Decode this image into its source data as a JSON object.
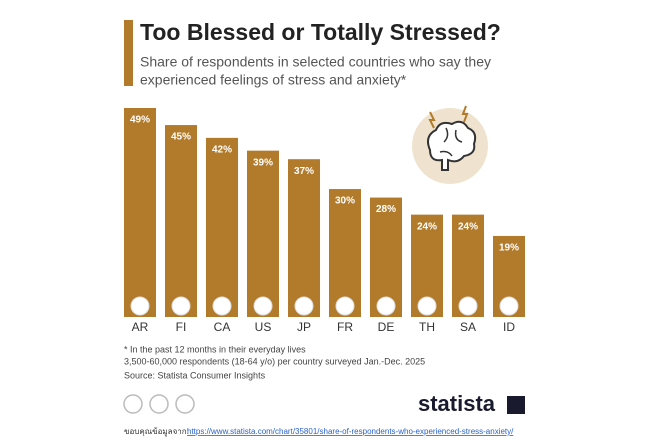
{
  "chart_data": {
    "type": "bar",
    "title": "Too Blessed or Totally Stressed?",
    "subtitle": [
      "Share of respondents in selected countries who say they",
      "experienced feelings of stress and anxiety*"
    ],
    "categories": [
      "AR",
      "FI",
      "CA",
      "US",
      "JP",
      "FR",
      "DE",
      "TH",
      "SA",
      "ID"
    ],
    "values": [
      49,
      45,
      42,
      39,
      37,
      30,
      28,
      24,
      24,
      19
    ],
    "value_labels": [
      "49%",
      "45%",
      "42%",
      "39%",
      "37%",
      "30%",
      "28%",
      "24%",
      "24%",
      "19%"
    ],
    "color": "#b27b2b",
    "notes": [
      "* In the past 12 months in their everyday lives",
      "3,500-60,000 respondents (18-64 y/o) per country surveyed Jan.-Dec. 2025",
      "Source: Statista Consumer Insights"
    ],
    "brand": "statista",
    "credit": "ขอบคุณข้อมูลจาก:",
    "url": "https://www.statista.com/chart/35801/share-of-respondents-who-experienced-stress-anxiety/"
  }
}
